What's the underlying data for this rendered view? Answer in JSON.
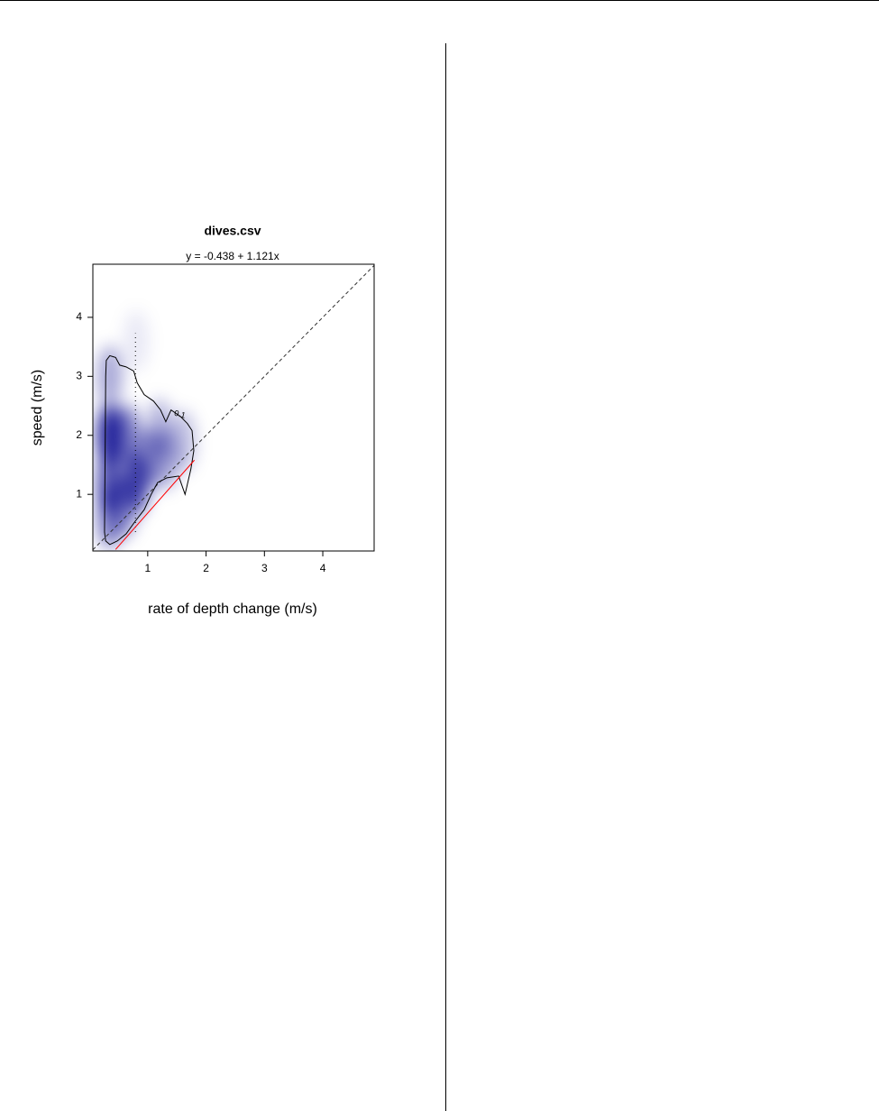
{
  "chart_data": {
    "type": "smoothscatter",
    "title": "dives.csv",
    "subtitle": "y = -0.438 + 1.121x",
    "xlabel": "rate of depth change (m/s)",
    "ylabel": "speed (m/s)",
    "xlim": [
      0.06,
      4.88
    ],
    "ylim": [
      0.04,
      4.9
    ],
    "xticks": [
      1,
      2,
      3,
      4
    ],
    "yticks": [
      1,
      2,
      3,
      4
    ],
    "density": {
      "color": "#00008b",
      "x": [
        0.35,
        0.35,
        0.35,
        0.8,
        0.65,
        1.0,
        1.3,
        1.6,
        0.35,
        0.8,
        1.2,
        0.6
      ],
      "y": [
        2.0,
        1.2,
        3.0,
        1.2,
        2.0,
        1.6,
        1.6,
        1.9,
        0.6,
        3.6,
        2.1,
        0.8
      ],
      "values": [
        1,
        0.8,
        0.4,
        0.85,
        0.6,
        0.5,
        0.4,
        0.3,
        0.6,
        0.1,
        0.35,
        0.5
      ]
    },
    "contour": {
      "label": "0.1",
      "label_x": 1.55,
      "label_y": 2.35,
      "x": [
        0.28,
        0.29,
        0.35,
        0.45,
        0.52,
        0.63,
        0.76,
        0.82,
        0.94,
        1.1,
        1.22,
        1.31,
        1.4,
        1.56,
        1.68,
        1.76,
        1.79,
        1.74,
        1.64,
        1.53,
        1.33,
        1.17,
        1.06,
        0.94,
        0.79,
        0.63,
        0.48,
        0.35,
        0.28,
        0.26
      ],
      "y": [
        3.0,
        3.27,
        3.35,
        3.32,
        3.19,
        3.16,
        3.09,
        2.89,
        2.69,
        2.58,
        2.43,
        2.23,
        2.43,
        2.32,
        2.2,
        2.08,
        1.74,
        1.43,
        1.0,
        1.31,
        1.28,
        1.2,
        1.0,
        0.74,
        0.55,
        0.33,
        0.21,
        0.15,
        0.21,
        0.36
      ]
    },
    "fit": {
      "intercept": -0.438,
      "slope": 1.121,
      "x": [
        0.45,
        1.8
      ],
      "color": "#ff0000"
    },
    "reference_line": {
      "intercept": 0,
      "slope": 1
    },
    "dotted_line": {
      "x": 0.79,
      "y": [
        0.36,
        3.73
      ]
    }
  }
}
